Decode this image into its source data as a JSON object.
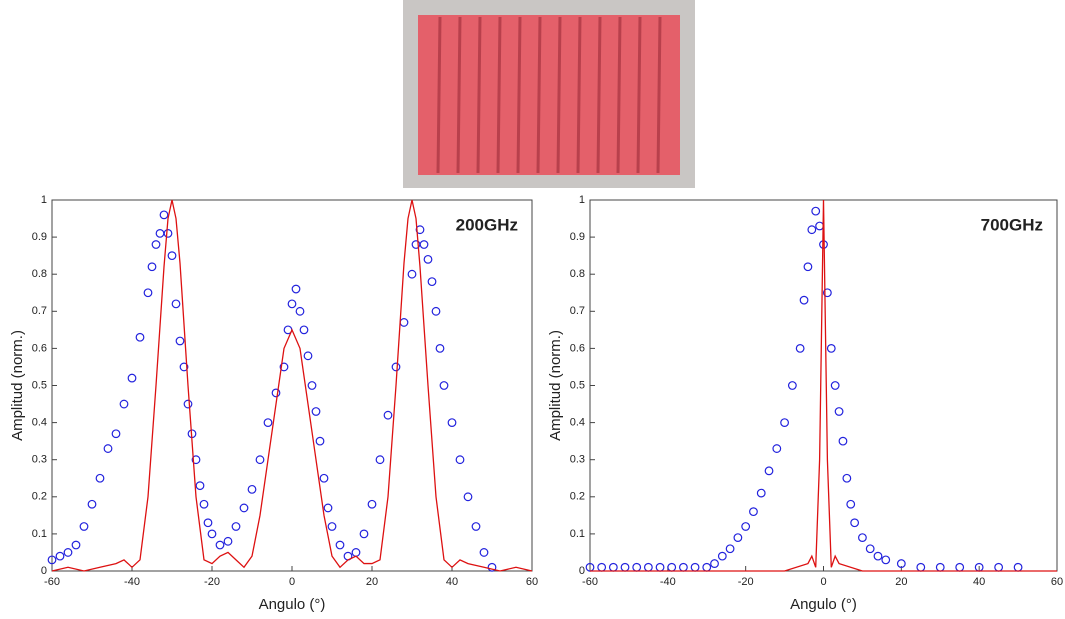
{
  "chart_data": [
    {
      "type": "scatter",
      "annotation": "200GHz",
      "xlabel": "Angulo (°)",
      "ylabel": "Amplitud (norm.)",
      "xlim": [
        -60,
        60
      ],
      "ylim": [
        0,
        1
      ],
      "xticks": [
        -60,
        -40,
        -20,
        0,
        20,
        40,
        60
      ],
      "yticks": [
        0,
        0.1,
        0.2,
        0.3,
        0.4,
        0.5,
        0.6,
        0.7,
        0.8,
        0.9,
        1
      ],
      "series": [
        {
          "color": "#2222dd",
          "marker": "circle",
          "x": [
            -60,
            -58,
            -56,
            -54,
            -52,
            -50,
            -48,
            -46,
            -44,
            -42,
            -40,
            -38,
            -36,
            -35,
            -34,
            -33,
            -32,
            -31,
            -30,
            -29,
            -28,
            -27,
            -26,
            -25,
            -24,
            -23,
            -22,
            -21,
            -20,
            -18,
            -16,
            -14,
            -12,
            -10,
            -8,
            -6,
            -4,
            -2,
            -1,
            0,
            1,
            2,
            3,
            4,
            5,
            6,
            7,
            8,
            9,
            10,
            12,
            14,
            16,
            18,
            20,
            22,
            24,
            26,
            28,
            30,
            31,
            32,
            33,
            34,
            35,
            36,
            37,
            38,
            40,
            42,
            44,
            46,
            48,
            50
          ],
          "values": [
            0.03,
            0.04,
            0.05,
            0.07,
            0.12,
            0.18,
            0.25,
            0.33,
            0.37,
            0.45,
            0.52,
            0.63,
            0.75,
            0.82,
            0.88,
            0.91,
            0.96,
            0.91,
            0.85,
            0.72,
            0.62,
            0.55,
            0.45,
            0.37,
            0.3,
            0.23,
            0.18,
            0.13,
            0.1,
            0.07,
            0.08,
            0.12,
            0.17,
            0.22,
            0.3,
            0.4,
            0.48,
            0.55,
            0.65,
            0.72,
            0.76,
            0.7,
            0.65,
            0.58,
            0.5,
            0.43,
            0.35,
            0.25,
            0.17,
            0.12,
            0.07,
            0.04,
            0.05,
            0.1,
            0.18,
            0.3,
            0.42,
            0.55,
            0.67,
            0.8,
            0.88,
            0.92,
            0.88,
            0.84,
            0.78,
            0.7,
            0.6,
            0.5,
            0.4,
            0.3,
            0.2,
            0.12,
            0.05,
            0.01
          ]
        },
        {
          "color": "#dd1111",
          "marker": "line",
          "x": [
            -60,
            -56,
            -52,
            -48,
            -44,
            -42,
            -40,
            -38,
            -36,
            -34,
            -32,
            -31,
            -30,
            -29,
            -28,
            -26,
            -24,
            -22,
            -20,
            -18,
            -16,
            -14,
            -12,
            -10,
            -8,
            -6,
            -4,
            -2,
            0,
            2,
            4,
            6,
            8,
            10,
            12,
            14,
            16,
            18,
            20,
            22,
            24,
            26,
            28,
            29,
            30,
            31,
            32,
            34,
            36,
            38,
            40,
            42,
            44,
            48,
            52,
            56,
            60
          ],
          "values": [
            0,
            0.01,
            0,
            0.01,
            0.02,
            0.03,
            0.01,
            0.03,
            0.2,
            0.5,
            0.82,
            0.95,
            1,
            0.95,
            0.83,
            0.5,
            0.2,
            0.03,
            0.02,
            0.04,
            0.05,
            0.03,
            0.01,
            0.04,
            0.15,
            0.3,
            0.45,
            0.6,
            0.65,
            0.6,
            0.45,
            0.3,
            0.15,
            0.04,
            0.01,
            0.03,
            0.04,
            0.02,
            0.02,
            0.03,
            0.2,
            0.5,
            0.83,
            0.95,
            1,
            0.95,
            0.82,
            0.5,
            0.2,
            0.03,
            0.01,
            0.03,
            0.02,
            0.01,
            0,
            0.01,
            0
          ]
        }
      ]
    },
    {
      "type": "scatter",
      "annotation": "700GHz",
      "xlabel": "Angulo (°)",
      "ylabel": "Amplitud (norm.)",
      "xlim": [
        -60,
        60
      ],
      "ylim": [
        0,
        1
      ],
      "xticks": [
        -60,
        -40,
        -20,
        0,
        20,
        40,
        60
      ],
      "yticks": [
        0,
        0.1,
        0.2,
        0.3,
        0.4,
        0.5,
        0.6,
        0.7,
        0.8,
        0.9,
        1
      ],
      "series": [
        {
          "color": "#2222dd",
          "marker": "circle",
          "x": [
            -60,
            -57,
            -54,
            -51,
            -48,
            -45,
            -42,
            -39,
            -36,
            -33,
            -30,
            -28,
            -26,
            -24,
            -22,
            -20,
            -18,
            -16,
            -14,
            -12,
            -10,
            -8,
            -6,
            -5,
            -4,
            -3,
            -2,
            -1,
            0,
            1,
            2,
            3,
            4,
            5,
            6,
            7,
            8,
            10,
            12,
            14,
            16,
            20,
            25,
            30,
            35,
            40,
            45,
            50
          ],
          "values": [
            0.01,
            0.01,
            0.01,
            0.01,
            0.01,
            0.01,
            0.01,
            0.01,
            0.01,
            0.01,
            0.01,
            0.02,
            0.04,
            0.06,
            0.09,
            0.12,
            0.16,
            0.21,
            0.27,
            0.33,
            0.4,
            0.5,
            0.6,
            0.73,
            0.82,
            0.92,
            0.97,
            0.93,
            0.88,
            0.75,
            0.6,
            0.5,
            0.43,
            0.35,
            0.25,
            0.18,
            0.13,
            0.09,
            0.06,
            0.04,
            0.03,
            0.02,
            0.01,
            0.01,
            0.01,
            0.01,
            0.01,
            0.01
          ]
        },
        {
          "color": "#dd1111",
          "marker": "line",
          "x": [
            -60,
            -10,
            -4,
            -3,
            -2,
            -1,
            0,
            1,
            2,
            3,
            4,
            10,
            60
          ],
          "values": [
            0,
            0,
            0.02,
            0.04,
            0.01,
            0.3,
            1,
            0.3,
            0.01,
            0.04,
            0.02,
            0,
            0
          ]
        }
      ]
    }
  ]
}
